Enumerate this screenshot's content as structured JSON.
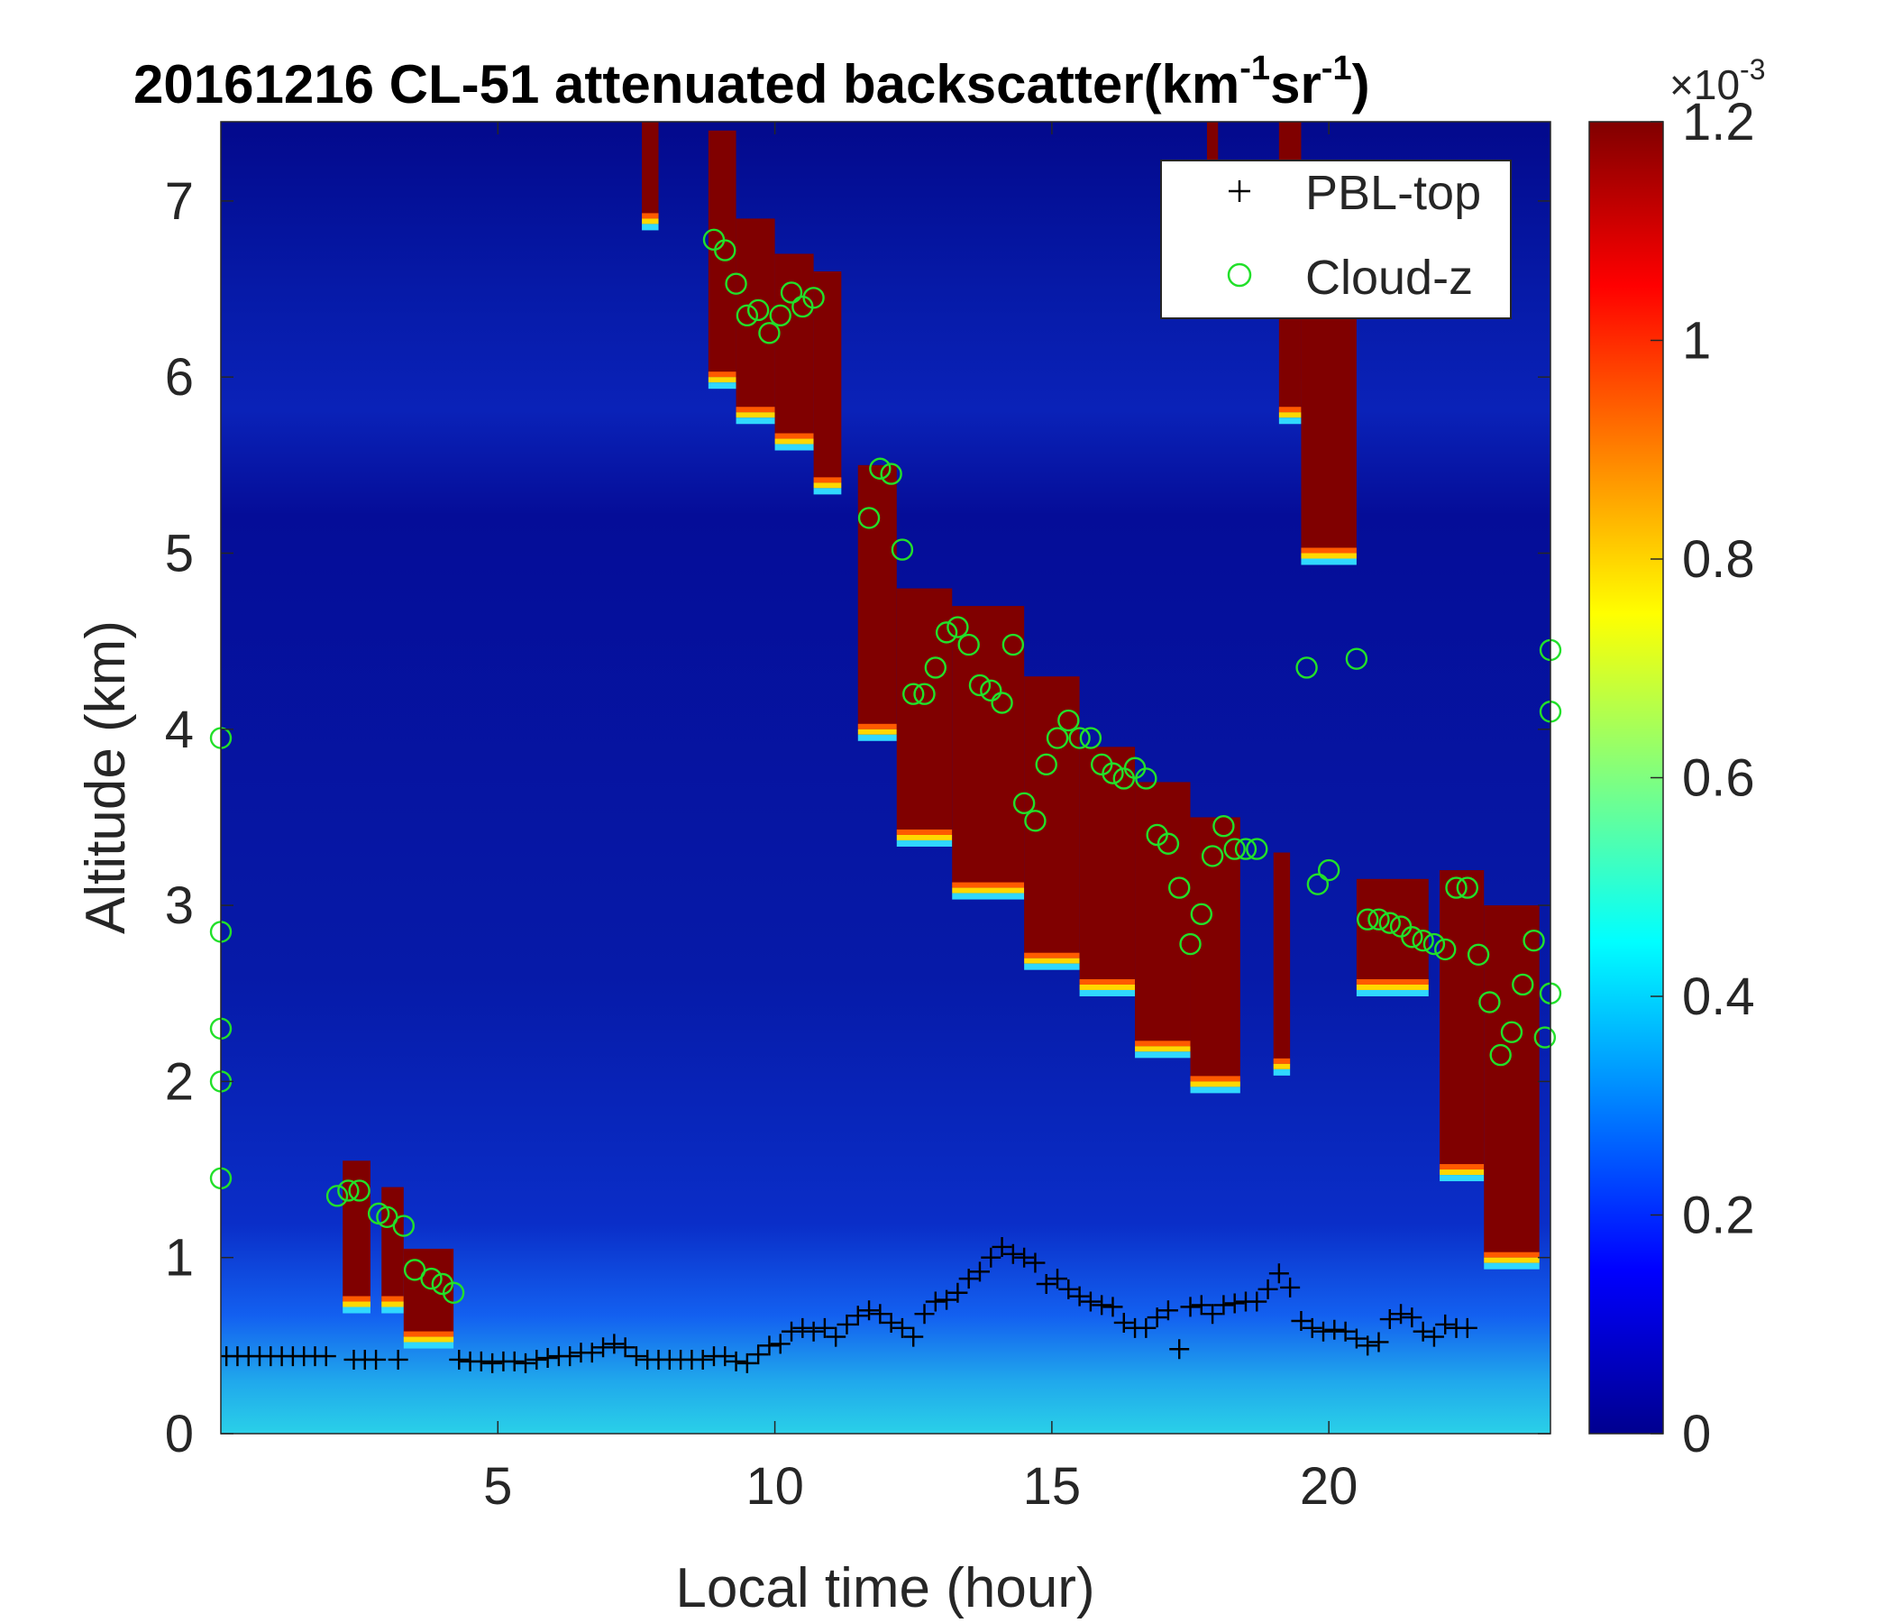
{
  "chart_data": {
    "type": "heatmap",
    "title": "20161216  CL-51 attenuated backscatter(km",
    "title_unit_sup1": "-1",
    "title_mid": "sr",
    "title_unit_sup2": "-1",
    "title_close": ")",
    "xlabel": "Local time (hour)",
    "ylabel": "Altitude (km)",
    "xlim": [
      0,
      24
    ],
    "ylim": [
      0,
      7.45
    ],
    "xticks": [
      5,
      10,
      15,
      20
    ],
    "yticks": [
      0,
      1,
      2,
      3,
      4,
      5,
      6,
      7
    ],
    "colorbar": {
      "colormap": "jet",
      "range": [
        0,
        1.2
      ],
      "ticks": [
        0,
        0.2,
        0.4,
        0.6,
        0.8,
        1,
        1.2
      ],
      "exponent_label_base": "×10",
      "exponent_label_power": "-3"
    },
    "legend": {
      "location": "top-right",
      "entries": [
        "PBL-top",
        "Cloud-z"
      ]
    },
    "cloud_layers": [
      {
        "t0": 2.2,
        "t1": 2.7,
        "top": 1.55,
        "bot": 0.75
      },
      {
        "t0": 2.9,
        "t1": 3.3,
        "top": 1.4,
        "bot": 0.75
      },
      {
        "t0": 3.3,
        "t1": 4.2,
        "top": 1.05,
        "bot": 0.55
      },
      {
        "t0": 7.6,
        "t1": 7.9,
        "top": 7.45,
        "bot": 6.9
      },
      {
        "t0": 8.8,
        "t1": 9.3,
        "top": 7.4,
        "bot": 6.0
      },
      {
        "t0": 9.3,
        "t1": 10.0,
        "top": 6.9,
        "bot": 5.8
      },
      {
        "t0": 10.0,
        "t1": 10.7,
        "top": 6.7,
        "bot": 5.65
      },
      {
        "t0": 10.7,
        "t1": 11.2,
        "top": 6.6,
        "bot": 5.4
      },
      {
        "t0": 11.5,
        "t1": 12.2,
        "top": 5.5,
        "bot": 4.0
      },
      {
        "t0": 12.2,
        "t1": 13.2,
        "top": 4.8,
        "bot": 3.4
      },
      {
        "t0": 13.2,
        "t1": 14.5,
        "top": 4.7,
        "bot": 3.1
      },
      {
        "t0": 14.5,
        "t1": 15.5,
        "top": 4.3,
        "bot": 2.7
      },
      {
        "t0": 15.5,
        "t1": 16.5,
        "top": 3.9,
        "bot": 2.55
      },
      {
        "t0": 16.5,
        "t1": 17.5,
        "top": 3.7,
        "bot": 2.2
      },
      {
        "t0": 17.5,
        "t1": 18.4,
        "top": 3.5,
        "bot": 2.0
      },
      {
        "t0": 17.8,
        "t1": 18.0,
        "top": 7.45,
        "bot": 7.0
      },
      {
        "t0": 19.1,
        "t1": 19.5,
        "top": 7.45,
        "bot": 5.8
      },
      {
        "t0": 19.5,
        "t1": 20.5,
        "top": 6.4,
        "bot": 5.0
      },
      {
        "t0": 19.0,
        "t1": 19.3,
        "top": 3.3,
        "bot": 2.1
      },
      {
        "t0": 20.5,
        "t1": 21.8,
        "top": 3.15,
        "bot": 2.55
      },
      {
        "t0": 22.0,
        "t1": 22.8,
        "top": 3.2,
        "bot": 1.5
      },
      {
        "t0": 22.8,
        "t1": 23.8,
        "top": 3.0,
        "bot": 1.0
      }
    ],
    "series": [
      {
        "name": "PBL-top",
        "marker": "+",
        "color": "#000000",
        "x": [
          0.1,
          0.3,
          0.5,
          0.7,
          0.9,
          1.1,
          1.3,
          1.5,
          1.7,
          1.9,
          2.4,
          2.6,
          2.8,
          3.2,
          4.3,
          4.5,
          4.7,
          4.9,
          5.1,
          5.3,
          5.5,
          5.7,
          5.9,
          6.1,
          6.3,
          6.5,
          6.7,
          6.9,
          7.1,
          7.3,
          7.5,
          7.7,
          7.9,
          8.1,
          8.3,
          8.5,
          8.7,
          8.9,
          9.1,
          9.3,
          9.5,
          9.7,
          9.9,
          10.1,
          10.3,
          10.5,
          10.7,
          10.9,
          11.1,
          11.3,
          11.5,
          11.7,
          11.9,
          12.1,
          12.3,
          12.5,
          12.7,
          12.9,
          13.1,
          13.3,
          13.5,
          13.7,
          13.9,
          14.1,
          14.3,
          14.5,
          14.7,
          14.9,
          15.1,
          15.3,
          15.5,
          15.7,
          15.9,
          16.1,
          16.3,
          16.5,
          16.7,
          16.9,
          17.1,
          17.3,
          17.5,
          17.7,
          17.9,
          18.1,
          18.3,
          18.5,
          18.7,
          18.9,
          19.1,
          19.3,
          19.5,
          19.7,
          19.9,
          20.1,
          20.3,
          20.5,
          20.7,
          20.9,
          21.1,
          21.3,
          21.5,
          21.7,
          21.9,
          22.1,
          22.3,
          22.5
        ],
        "y": [
          0.44,
          0.44,
          0.44,
          0.44,
          0.44,
          0.44,
          0.44,
          0.44,
          0.44,
          0.44,
          0.42,
          0.42,
          0.42,
          0.42,
          0.42,
          0.41,
          0.41,
          0.4,
          0.41,
          0.41,
          0.4,
          0.42,
          0.43,
          0.44,
          0.44,
          0.46,
          0.46,
          0.49,
          0.51,
          0.49,
          0.44,
          0.42,
          0.42,
          0.42,
          0.42,
          0.42,
          0.42,
          0.44,
          0.44,
          0.41,
          0.4,
          0.45,
          0.5,
          0.51,
          0.58,
          0.6,
          0.58,
          0.6,
          0.55,
          0.62,
          0.67,
          0.7,
          0.68,
          0.63,
          0.6,
          0.55,
          0.68,
          0.75,
          0.76,
          0.8,
          0.88,
          0.92,
          1.0,
          1.06,
          1.02,
          1.0,
          0.97,
          0.85,
          0.88,
          0.82,
          0.78,
          0.75,
          0.73,
          0.72,
          0.63,
          0.6,
          0.6,
          0.66,
          0.7,
          0.48,
          0.72,
          0.73,
          0.68,
          0.73,
          0.74,
          0.75,
          0.75,
          0.82,
          0.91,
          0.83,
          0.64,
          0.6,
          0.58,
          0.59,
          0.58,
          0.54,
          0.5,
          0.52,
          0.65,
          0.68,
          0.66,
          0.58,
          0.55,
          0.62,
          0.6,
          0.6
        ]
      },
      {
        "name": "Cloud-z",
        "marker": "o",
        "color": "#22e02a",
        "x": [
          0.0,
          0.0,
          0.0,
          0.0,
          0.0,
          2.1,
          2.3,
          2.5,
          2.85,
          3.0,
          3.3,
          3.5,
          3.8,
          4.0,
          4.2,
          8.9,
          9.1,
          9.3,
          9.5,
          9.7,
          9.9,
          10.1,
          10.3,
          10.5,
          10.7,
          11.7,
          11.9,
          12.1,
          12.3,
          12.5,
          12.7,
          12.9,
          13.1,
          13.3,
          13.5,
          13.7,
          13.9,
          14.1,
          14.3,
          14.5,
          14.7,
          14.9,
          15.1,
          15.3,
          15.5,
          15.7,
          15.9,
          16.1,
          16.3,
          16.5,
          16.7,
          16.9,
          17.1,
          17.3,
          17.5,
          17.7,
          17.9,
          18.1,
          18.3,
          18.5,
          18.7,
          19.6,
          19.8,
          20.0,
          20.5,
          20.7,
          20.9,
          21.1,
          21.3,
          21.5,
          21.7,
          21.9,
          22.1,
          22.3,
          22.5,
          22.7,
          22.9,
          23.1,
          23.3,
          23.5,
          23.7,
          23.9,
          24.0,
          24.0,
          24.0
        ],
        "y": [
          3.95,
          2.85,
          2.3,
          2.0,
          1.45,
          1.35,
          1.38,
          1.38,
          1.25,
          1.23,
          1.18,
          0.93,
          0.88,
          0.85,
          0.8,
          6.78,
          6.72,
          6.53,
          6.35,
          6.38,
          6.25,
          6.35,
          6.48,
          6.4,
          6.45,
          5.2,
          5.48,
          5.45,
          5.02,
          4.2,
          4.2,
          4.35,
          4.55,
          4.58,
          4.48,
          4.25,
          4.22,
          4.15,
          4.48,
          3.58,
          3.48,
          3.8,
          3.95,
          4.05,
          3.95,
          3.95,
          3.8,
          3.75,
          3.72,
          3.78,
          3.72,
          3.4,
          3.35,
          3.1,
          2.78,
          2.95,
          3.28,
          3.45,
          3.32,
          3.32,
          3.32,
          4.35,
          3.12,
          3.2,
          4.4,
          2.92,
          2.92,
          2.9,
          2.88,
          2.82,
          2.8,
          2.78,
          2.75,
          3.1,
          3.1,
          2.72,
          2.45,
          2.15,
          2.28,
          2.55,
          2.8,
          2.25,
          4.45,
          4.1,
          2.5
        ]
      }
    ]
  }
}
